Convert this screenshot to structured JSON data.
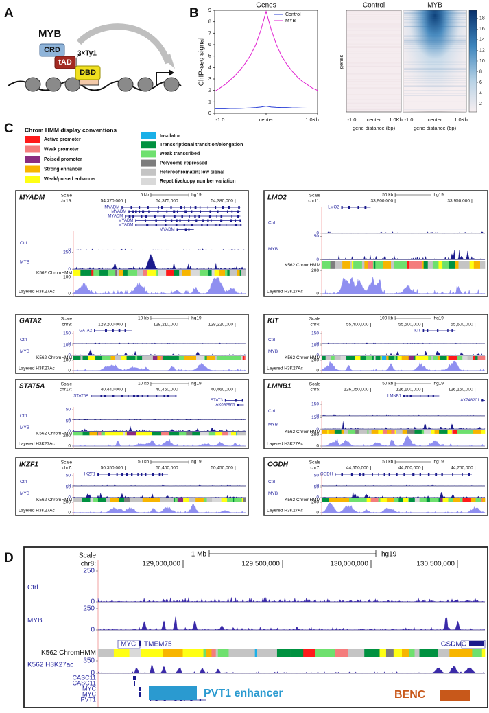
{
  "panel_labels": [
    "A",
    "B",
    "C",
    "D"
  ],
  "schematic": {
    "protein": "MYB",
    "domains": [
      "CRD",
      "tAD",
      "DBD"
    ],
    "tag": "3×Ty1"
  },
  "chart_data": {
    "type": "line",
    "title": "Genes",
    "y_label": "ChIP-seq signal",
    "x": [
      -1.0,
      -0.9,
      -0.8,
      -0.7,
      -0.6,
      -0.5,
      -0.4,
      -0.3,
      -0.2,
      -0.1,
      0.0,
      0.1,
      0.2,
      0.3,
      0.4,
      0.5,
      0.6,
      0.7,
      0.8,
      0.9,
      1.0
    ],
    "series": [
      {
        "name": "Control",
        "color": "#2a3fd6",
        "values": [
          0.4,
          0.4,
          0.4,
          0.42,
          0.42,
          0.43,
          0.45,
          0.47,
          0.5,
          0.55,
          0.62,
          0.55,
          0.52,
          0.5,
          0.5,
          0.48,
          0.47,
          0.46,
          0.45,
          0.45,
          0.45
        ]
      },
      {
        "name": "MYB",
        "color": "#e020d0",
        "values": [
          1.9,
          2.2,
          2.5,
          2.9,
          3.3,
          3.8,
          4.4,
          5.1,
          6.0,
          7.3,
          8.9,
          7.3,
          6.0,
          5.0,
          4.3,
          3.7,
          3.2,
          2.8,
          2.5,
          2.2,
          2.0
        ]
      }
    ],
    "xlim": [
      -1.0,
      1.0
    ],
    "xticks": [
      {
        "value": -1.0,
        "label": "-1.0"
      },
      {
        "value": 0,
        "label": "center"
      },
      {
        "value": 1.0,
        "label": "1.0Kb"
      }
    ],
    "ylim": [
      0,
      9
    ],
    "yticks": [
      0,
      1,
      2,
      3,
      4,
      5,
      6,
      7,
      8,
      9
    ],
    "legend": "upper right"
  },
  "heatmap": {
    "titles": [
      "Control",
      "MYB"
    ],
    "y_label": "genes",
    "x_ticks": [
      "-1.0",
      "center",
      "1.0Kb"
    ],
    "x_label": "gene distance (bp)",
    "colorbar_lim": [
      0.5,
      19.5
    ],
    "colorbar_ticks": [
      2,
      4,
      6,
      8,
      10,
      12,
      14,
      16,
      18
    ]
  },
  "chromhmm_legend": {
    "title": "Chrom HMM display conventions",
    "items": [
      {
        "label": "Active promoter",
        "color": "#ff1a1a"
      },
      {
        "label": "Weak promoter",
        "color": "#f47c7c"
      },
      {
        "label": "Poised promoter",
        "color": "#8a2c80"
      },
      {
        "label": "Strong enhancer",
        "color": "#f7b500"
      },
      {
        "label": "Weak/poised enhancer",
        "color": "#ffff14"
      },
      {
        "label": "Insulator",
        "color": "#1ab0e8"
      },
      {
        "label": "Transcriptional transition/elongation",
        "color": "#009140"
      },
      {
        "label": "Weak transcribed",
        "color": "#6ee06e"
      },
      {
        "label": "Polycomb-repressed",
        "color": "#7d7d7d"
      },
      {
        "label": "Heterochromatin; low signal",
        "color": "#c4c4c4"
      },
      {
        "label": "Repetitive/copy number variation",
        "color": "#d9d9d9"
      }
    ]
  },
  "browser_panels": [
    {
      "gene": "MYADM",
      "scale": "Scale",
      "chrom": "chr19:",
      "scale_bar": "5 kb",
      "assembly": "hg19",
      "coords": [
        "54,370,000",
        "54,375,000",
        "54,380,000"
      ],
      "genes": [
        "MYADM",
        "MYADM",
        "MYADM",
        "MYADM",
        "MYADM",
        "MYADM"
      ],
      "tracks": [
        {
          "label": "Ctrl",
          "ticks": [
            0
          ]
        },
        {
          "label": "MYB",
          "ticks": [
            250,
            0
          ]
        },
        {
          "label": "K562 ChromHMM"
        },
        {
          "label": "Layered H3K27Ac",
          "ticks": [
            100,
            0
          ]
        }
      ]
    },
    {
      "gene": "LMO2",
      "scale": "Scale",
      "chrom": "chr11:",
      "scale_bar": "50 kb",
      "assembly": "hg19",
      "coords": [
        "33,900,000",
        "33,950,000"
      ],
      "genes": [
        "LMO2"
      ],
      "tracks": [
        {
          "label": "Ctrl",
          "ticks": [
            0
          ]
        },
        {
          "label": "MYB",
          "ticks": [
            50,
            0
          ]
        },
        {
          "label": "K562 ChromHMM"
        },
        {
          "label": "Layered H3K27Ac",
          "ticks": [
            200,
            0
          ]
        }
      ]
    },
    {
      "gene": "GATA2",
      "scale": "Scale",
      "chrom": "chr3:",
      "scale_bar": "10 kb",
      "assembly": "hg19",
      "coords": [
        "128,200,000",
        "128,210,000",
        "128,220,000"
      ],
      "genes": [
        "GATA2"
      ],
      "tracks": [
        {
          "label": "Ctrl",
          "ticks": [
            150,
            0
          ]
        },
        {
          "label": "MYB",
          "ticks": [
            100,
            0
          ]
        },
        {
          "label": "K562 ChromHMM"
        },
        {
          "label": "Layered H3K27Ac",
          "ticks": [
            100,
            0
          ]
        }
      ]
    },
    {
      "gene": "KIT",
      "scale": "Scale",
      "chrom": "chr4:",
      "scale_bar": "100 kb",
      "assembly": "hg19",
      "coords": [
        "55,400,000",
        "55,500,000",
        "55,600,000"
      ],
      "genes": [
        "KIT"
      ],
      "tracks": [
        {
          "label": "Ctrl",
          "ticks": [
            150,
            0
          ]
        },
        {
          "label": "MYB",
          "ticks": [
            100,
            0
          ]
        },
        {
          "label": "K562 ChromHMM"
        },
        {
          "label": "Layered H3K27Ac",
          "ticks": [
            200,
            0
          ]
        }
      ]
    },
    {
      "gene": "STAT5A",
      "scale": "Scale",
      "chrom": "chr17:",
      "scale_bar": "10 kb",
      "assembly": "hg19",
      "coords": [
        "40,440,000",
        "40,450,000",
        "40,460,000"
      ],
      "genes": [
        "STAT5A",
        "STAT3",
        "AK092965"
      ],
      "tracks": [
        {
          "label": "Ctrl",
          "ticks": [
            50,
            0
          ]
        },
        {
          "label": "MYB",
          "ticks": [
            50,
            0
          ]
        },
        {
          "label": "K562 ChromHMM"
        },
        {
          "label": "Layered H3K27Ac",
          "ticks": [
            200,
            0
          ]
        }
      ]
    },
    {
      "gene": "LMNB1",
      "scale": "Scale",
      "chrom": "chr5:",
      "scale_bar": "50 kb",
      "assembly": "hg19",
      "coords": [
        "126,050,000",
        "126,100,000",
        "126,150,000"
      ],
      "genes": [
        "LMNB1",
        "AX748201"
      ],
      "tracks": [
        {
          "label": "Ctrl",
          "ticks": [
            150,
            0
          ]
        },
        {
          "label": "MYB",
          "ticks": [
            150,
            0
          ]
        },
        {
          "label": "K562 ChromHMM"
        },
        {
          "label": "Layered H3K27Ac",
          "ticks": [
            200,
            0
          ]
        }
      ]
    },
    {
      "gene": "IKZF1",
      "scale": "Scale",
      "chrom": "chr7:",
      "scale_bar": "50 kb",
      "assembly": "hg19",
      "coords": [
        "50,350,000",
        "50,400,000",
        "50,450,000"
      ],
      "genes": [
        "IKZF1"
      ],
      "tracks": [
        {
          "label": "Ctrl",
          "ticks": [
            50,
            0
          ]
        },
        {
          "label": "MYB",
          "ticks": [
            50,
            0
          ]
        },
        {
          "label": "K562 ChromHMM"
        },
        {
          "label": "Layered H3K27Ac",
          "ticks": [
            200,
            0
          ]
        }
      ]
    },
    {
      "gene": "OGDH",
      "scale": "Scale",
      "chrom": "chr7:",
      "scale_bar": "50 kb",
      "assembly": "hg19",
      "coords": [
        "44,650,000",
        "44,700,000",
        "44,750,000"
      ],
      "genes": [
        "OGDH"
      ],
      "tracks": [
        {
          "label": "Ctrl",
          "ticks": [
            50,
            0
          ]
        },
        {
          "label": "MYB",
          "ticks": [
            50,
            0
          ]
        },
        {
          "label": "K562 ChromHMM"
        },
        {
          "label": "Layered H3K27Ac",
          "ticks": [
            200,
            0
          ]
        }
      ]
    }
  ],
  "region_panel": {
    "scale": "Scale",
    "chrom": "chr8:",
    "scale_bar": "1 Mb",
    "assembly": "hg19",
    "coords": [
      "129,000,000",
      "129,500,000",
      "130,000,000",
      "130,500,000"
    ],
    "tracks": [
      {
        "label": "Ctrl",
        "ticks": [
          250,
          0
        ]
      },
      {
        "label": "MYB",
        "ticks": [
          250,
          0
        ]
      },
      {
        "label": "K562 ChromHMM"
      },
      {
        "label": "K562 H3K27ac",
        "ticks": [
          350,
          0
        ]
      }
    ],
    "top_genes": [
      "MYC",
      "TMEM75",
      "GSDMC"
    ],
    "bottom_genes": [
      "CASC11",
      "CASC11",
      "MYC",
      "MYC",
      "PVT1"
    ],
    "enhancers": [
      {
        "label": "PVT1 enhancer",
        "color": "#2a9ad0"
      },
      {
        "label": "BENC",
        "color": "#c8581a"
      }
    ]
  }
}
